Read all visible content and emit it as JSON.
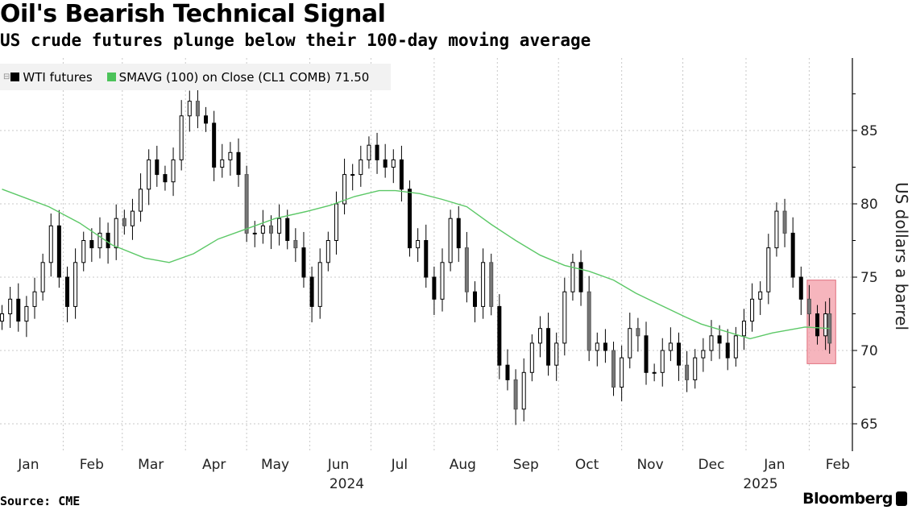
{
  "title": "Oil's Bearish Technical Signal",
  "subtitle": "US crude futures plunge below their 100-day moving average",
  "source": "Source: CME",
  "brand": "Bloomberg",
  "colors": {
    "candle_down": "#000000",
    "candle_up": "#ffffff",
    "sma": "#5cc867",
    "highlight": "#f4a3ad",
    "highlight_border": "#e0707e",
    "grid": "#c8c8c8",
    "legend_bg": "#f2f2f2"
  },
  "legend": {
    "items": [
      {
        "label": "WTI futures",
        "color": "#000000"
      },
      {
        "label": "SMAVG (100)  on Close (CL1 COMB) 71.50",
        "color": "#4cc35a"
      }
    ]
  },
  "chart_data": {
    "type": "candlestick",
    "title": "Oil's Bearish Technical Signal",
    "subtitle": "US crude futures plunge below their 100-day moving average",
    "ylabel": "US dollars a barrel",
    "ylim": [
      63,
      89
    ],
    "y_ticks": [
      65,
      70,
      75,
      80,
      85
    ],
    "y_axis_position": "right",
    "grid": true,
    "legend_placement": "top-left",
    "x_tick_labels": [
      {
        "label": "Jan",
        "month": "2024-01"
      },
      {
        "label": "Feb",
        "month": "2024-02"
      },
      {
        "label": "Mar",
        "month": "2024-03"
      },
      {
        "label": "Apr",
        "month": "2024-04"
      },
      {
        "label": "May",
        "month": "2024-05"
      },
      {
        "label": "Jun",
        "month": "2024-06"
      },
      {
        "label": "Jul",
        "month": "2024-07"
      },
      {
        "label": "Aug",
        "month": "2024-08"
      },
      {
        "label": "Sep",
        "month": "2024-09"
      },
      {
        "label": "Oct",
        "month": "2024-10"
      },
      {
        "label": "Nov",
        "month": "2024-11"
      },
      {
        "label": "Dec",
        "month": "2024-12"
      },
      {
        "label": "Jan",
        "month": "2025-01"
      },
      {
        "label": "Feb",
        "month": "2025-02"
      }
    ],
    "year_labels": [
      {
        "label": "2024",
        "month": "2024-07"
      },
      {
        "label": "2025",
        "month": "2025-01"
      }
    ],
    "series": [
      {
        "name": "WTI futures",
        "kind": "candles",
        "points": [
          [
            "2024-01-02",
            72.5
          ],
          [
            "2024-01-06",
            73.5
          ],
          [
            "2024-01-10",
            72
          ],
          [
            "2024-01-14",
            73
          ],
          [
            "2024-01-18",
            74
          ],
          [
            "2024-01-22",
            76
          ],
          [
            "2024-01-26",
            78.5
          ],
          [
            "2024-01-30",
            75
          ],
          [
            "2024-02-03",
            73
          ],
          [
            "2024-02-07",
            76
          ],
          [
            "2024-02-11",
            77.5
          ],
          [
            "2024-02-15",
            77
          ],
          [
            "2024-02-19",
            78
          ],
          [
            "2024-02-23",
            77
          ],
          [
            "2024-02-27",
            79
          ],
          [
            "2024-03-02",
            78.5
          ],
          [
            "2024-03-06",
            79.5
          ],
          [
            "2024-03-10",
            81
          ],
          [
            "2024-03-14",
            83
          ],
          [
            "2024-03-18",
            82
          ],
          [
            "2024-03-22",
            81.5
          ],
          [
            "2024-03-26",
            83
          ],
          [
            "2024-03-30",
            86
          ],
          [
            "2024-04-03",
            87
          ],
          [
            "2024-04-07",
            86
          ],
          [
            "2024-04-11",
            85.5
          ],
          [
            "2024-04-15",
            82.5
          ],
          [
            "2024-04-19",
            83
          ],
          [
            "2024-04-23",
            83.5
          ],
          [
            "2024-04-27",
            82
          ],
          [
            "2024-05-01",
            78
          ],
          [
            "2024-05-05",
            78
          ],
          [
            "2024-05-09",
            78.5
          ],
          [
            "2024-05-13",
            78
          ],
          [
            "2024-05-17",
            79
          ],
          [
            "2024-05-21",
            77.5
          ],
          [
            "2024-05-25",
            77
          ],
          [
            "2024-05-29",
            75
          ],
          [
            "2024-06-02",
            73
          ],
          [
            "2024-06-06",
            76
          ],
          [
            "2024-06-10",
            77.5
          ],
          [
            "2024-06-14",
            80
          ],
          [
            "2024-06-18",
            82
          ],
          [
            "2024-06-22",
            82
          ],
          [
            "2024-06-26",
            83
          ],
          [
            "2024-06-30",
            84
          ],
          [
            "2024-07-04",
            83
          ],
          [
            "2024-07-08",
            82.5
          ],
          [
            "2024-07-12",
            83
          ],
          [
            "2024-07-16",
            81
          ],
          [
            "2024-07-20",
            77
          ],
          [
            "2024-07-24",
            77.5
          ],
          [
            "2024-07-28",
            75
          ],
          [
            "2024-08-01",
            73.5
          ],
          [
            "2024-08-05",
            76
          ],
          [
            "2024-08-09",
            79
          ],
          [
            "2024-08-13",
            77
          ],
          [
            "2024-08-17",
            74
          ],
          [
            "2024-08-21",
            73
          ],
          [
            "2024-08-25",
            76
          ],
          [
            "2024-08-29",
            73
          ],
          [
            "2024-09-02",
            69
          ],
          [
            "2024-09-06",
            68
          ],
          [
            "2024-09-10",
            66
          ],
          [
            "2024-09-14",
            68.5
          ],
          [
            "2024-09-18",
            70.5
          ],
          [
            "2024-09-22",
            71.5
          ],
          [
            "2024-09-26",
            69
          ],
          [
            "2024-09-30",
            70.5
          ],
          [
            "2024-10-04",
            74
          ],
          [
            "2024-10-08",
            76
          ],
          [
            "2024-10-12",
            74
          ],
          [
            "2024-10-16",
            70
          ],
          [
            "2024-10-20",
            70.5
          ],
          [
            "2024-10-24",
            70
          ],
          [
            "2024-10-28",
            67.5
          ],
          [
            "2024-11-01",
            69.5
          ],
          [
            "2024-11-05",
            71.5
          ],
          [
            "2024-11-09",
            71
          ],
          [
            "2024-11-13",
            68.5
          ],
          [
            "2024-11-17",
            68.5
          ],
          [
            "2024-11-21",
            70
          ],
          [
            "2024-11-25",
            70.5
          ],
          [
            "2024-11-29",
            69
          ],
          [
            "2024-12-03",
            68
          ],
          [
            "2024-12-07",
            69.5
          ],
          [
            "2024-12-11",
            70
          ],
          [
            "2024-12-15",
            71
          ],
          [
            "2024-12-19",
            70.5
          ],
          [
            "2024-12-23",
            69.5
          ],
          [
            "2024-12-27",
            71
          ],
          [
            "2024-12-31",
            72
          ],
          [
            "2025-01-04",
            73.5
          ],
          [
            "2025-01-08",
            74
          ],
          [
            "2025-01-12",
            77
          ],
          [
            "2025-01-16",
            79.5
          ],
          [
            "2025-01-20",
            78
          ],
          [
            "2025-01-24",
            75
          ],
          [
            "2025-01-28",
            73.5
          ],
          [
            "2025-02-01",
            72.5
          ],
          [
            "2025-02-05",
            71
          ],
          [
            "2025-02-09",
            72.5
          ],
          [
            "2025-02-11",
            70.5
          ]
        ]
      },
      {
        "name": "SMAVG (100)  on Close (CL1 COMB)",
        "kind": "line",
        "last_value": 71.5,
        "points": [
          [
            "2024-01-02",
            81.0
          ],
          [
            "2024-01-25",
            79.8
          ],
          [
            "2024-02-09",
            78.7
          ],
          [
            "2024-02-25",
            77.2
          ],
          [
            "2024-03-12",
            76.3
          ],
          [
            "2024-03-24",
            76.0
          ],
          [
            "2024-04-05",
            76.6
          ],
          [
            "2024-04-17",
            77.6
          ],
          [
            "2024-04-29",
            78.2
          ],
          [
            "2024-05-15",
            79.0
          ],
          [
            "2024-05-31",
            79.5
          ],
          [
            "2024-06-11",
            79.9
          ],
          [
            "2024-06-23",
            80.5
          ],
          [
            "2024-07-05",
            80.9
          ],
          [
            "2024-07-13",
            80.9
          ],
          [
            "2024-07-25",
            80.7
          ],
          [
            "2024-08-05",
            80.3
          ],
          [
            "2024-08-17",
            79.8
          ],
          [
            "2024-08-29",
            78.6
          ],
          [
            "2024-09-10",
            77.5
          ],
          [
            "2024-09-22",
            76.5
          ],
          [
            "2024-10-04",
            75.8
          ],
          [
            "2024-10-16",
            75.4
          ],
          [
            "2024-10-28",
            74.8
          ],
          [
            "2024-11-08",
            73.9
          ],
          [
            "2024-11-20",
            73.1
          ],
          [
            "2024-12-02",
            72.3
          ],
          [
            "2024-12-10",
            71.8
          ],
          [
            "2024-12-22",
            71.3
          ],
          [
            "2025-01-03",
            70.8
          ],
          [
            "2025-01-14",
            71.2
          ],
          [
            "2025-01-30",
            71.6
          ],
          [
            "2025-02-11",
            71.5
          ]
        ]
      }
    ],
    "highlight": {
      "x": [
        "2025-01-31",
        "2025-02-14"
      ],
      "y": [
        69.1,
        74.8
      ]
    }
  }
}
